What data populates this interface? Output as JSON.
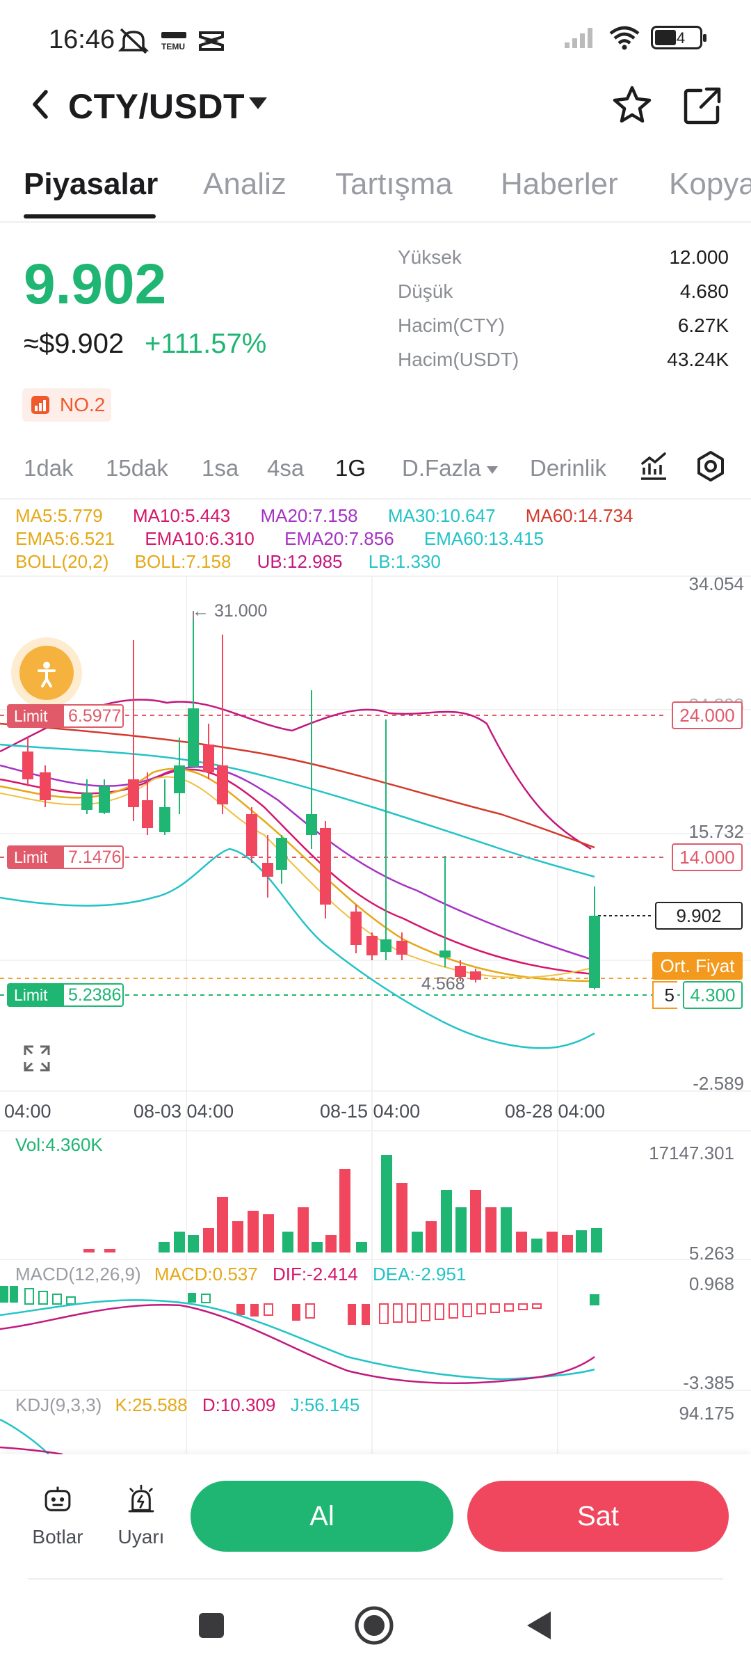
{
  "status": {
    "time": "16:46",
    "battery": "44",
    "icons": [
      "mute-icon",
      "temu-app-icon",
      "capcut-app-icon",
      "signal-icon",
      "wifi-icon",
      "battery-icon"
    ]
  },
  "header": {
    "pair": "CTY/USDT",
    "icons": [
      "back-arrow-icon",
      "caret-down-icon",
      "star-icon",
      "share-icon"
    ]
  },
  "tabs": [
    "Piyasalar",
    "Analiz",
    "Tartışma",
    "Haberler",
    "Kopya"
  ],
  "price": {
    "last": "9.902",
    "usd": "≈$9.902",
    "change": "+111.57%",
    "rank": "NO.2",
    "colors": {
      "up": "#1fb573",
      "down": "#f0475e"
    }
  },
  "stats": [
    {
      "label": "Yüksek",
      "value": "12.000"
    },
    {
      "label": "Düşük",
      "value": "4.680"
    },
    {
      "label": "Hacim(CTY)",
      "value": "6.27K"
    },
    {
      "label": "Hacim(USDT)",
      "value": "43.24K"
    }
  ],
  "timeframes": {
    "items": [
      "1dak",
      "15dak",
      "1sa",
      "4sa",
      "1G",
      "D.Fazla",
      "Derinlik"
    ],
    "selected": "1G"
  },
  "indicators": {
    "row1": [
      {
        "text": "MA5:5.779",
        "color": "#e5a817"
      },
      {
        "text": "MA10:5.443",
        "color": "#d6156b"
      },
      {
        "text": "MA20:7.158",
        "color": "#a533c4"
      },
      {
        "text": "MA30:10.647",
        "color": "#23c3c7"
      },
      {
        "text": "MA60:14.734",
        "color": "#d33a2c"
      }
    ],
    "row2": [
      {
        "text": "EMA5:6.521",
        "color": "#e5a817"
      },
      {
        "text": "EMA10:6.310",
        "color": "#d6156b"
      },
      {
        "text": "EMA20:7.856",
        "color": "#a533c4"
      },
      {
        "text": "EMA60:13.415",
        "color": "#23c3c7"
      }
    ],
    "row3": [
      {
        "text": "BOLL(20,2)",
        "color": "#e5a817"
      },
      {
        "text": "BOLL:7.158",
        "color": "#e5a817"
      },
      {
        "text": "UB:12.985",
        "color": "#c2187e"
      },
      {
        "text": "LB:1.330",
        "color": "#23c3c7"
      }
    ]
  },
  "main_chart": {
    "y_axis": [
      "34.054",
      "15.732",
      "-2.589"
    ],
    "y_axis_partial": "24.893",
    "x_axis": [
      "04:00",
      "08-03 04:00",
      "08-15 04:00",
      "08-28 04:00"
    ],
    "max_marker": "← 31.000",
    "min_marker": "4.568",
    "orders": [
      {
        "label": "Limit",
        "value": "6.5977",
        "price": "24.000",
        "side": "sell"
      },
      {
        "label": "Limit",
        "value": "7.1476",
        "price": "14.000",
        "side": "sell"
      },
      {
        "label": "Limit",
        "value": "5.2386",
        "price": "4.300",
        "side": "buy"
      }
    ],
    "last_price_tag": "9.902",
    "avg_price_label": "Ort. Fiyat",
    "avg_price_partial": "5",
    "icons": [
      "assist-person-icon",
      "fullscreen-icon",
      "chart-type-icon",
      "settings-hex-icon"
    ]
  },
  "volume": {
    "label": "Vol:4.360K",
    "max": "17147.301",
    "min": "5.263"
  },
  "macd": {
    "label": "MACD(12,26,9)",
    "macd": "MACD:0.537",
    "dif": "DIF:-2.414",
    "dea": "DEA:-2.951",
    "max": "0.968",
    "min": "-3.385"
  },
  "kdj": {
    "label": "KDJ(9,3,3)",
    "k": "K:25.588",
    "d": "D:10.309",
    "j": "J:56.145",
    "max": "94.175"
  },
  "bottom": {
    "bots": "Botlar",
    "alerts": "Uyarı",
    "buy": "Al",
    "sell": "Sat"
  }
}
